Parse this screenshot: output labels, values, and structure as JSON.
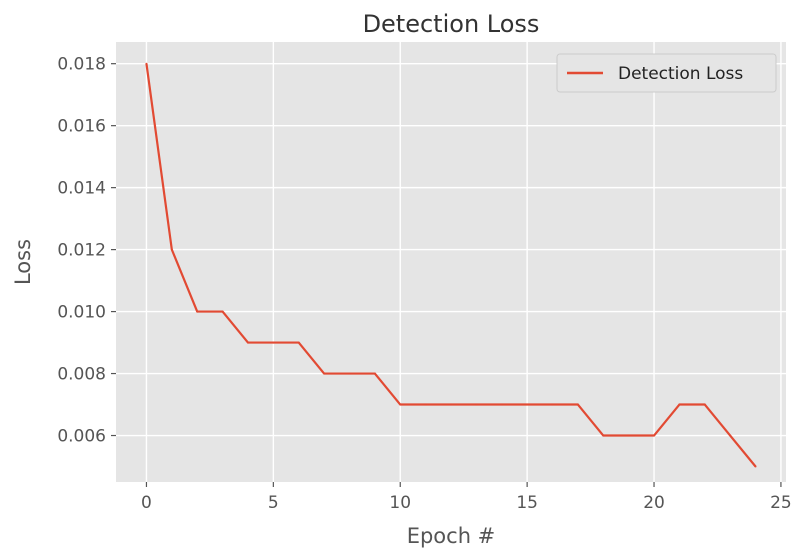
{
  "chart_data": {
    "type": "line",
    "title": "Detection Loss",
    "xlabel": "Epoch #",
    "ylabel": "Loss",
    "xlim": [
      -1.2,
      25.2
    ],
    "ylim": [
      0.0045,
      0.0187
    ],
    "xticks": [
      0,
      5,
      10,
      15,
      20,
      25
    ],
    "xtick_labels": [
      "0",
      "5",
      "10",
      "15",
      "20",
      "25"
    ],
    "yticks": [
      0.006,
      0.008,
      0.01,
      0.012,
      0.014,
      0.016,
      0.018
    ],
    "ytick_labels": [
      "0.006",
      "0.008",
      "0.010",
      "0.012",
      "0.014",
      "0.016",
      "0.018"
    ],
    "grid": true,
    "legend_position": "top-right",
    "x": [
      0,
      1,
      2,
      3,
      4,
      5,
      6,
      7,
      8,
      9,
      10,
      11,
      12,
      13,
      14,
      15,
      16,
      17,
      18,
      19,
      20,
      21,
      22,
      23,
      24
    ],
    "series": [
      {
        "name": "Detection Loss",
        "color": "#E24A33",
        "values": [
          0.018,
          0.012,
          0.01,
          0.01,
          0.009,
          0.009,
          0.009,
          0.008,
          0.008,
          0.008,
          0.007,
          0.007,
          0.007,
          0.007,
          0.007,
          0.007,
          0.007,
          0.007,
          0.006,
          0.006,
          0.006,
          0.007,
          0.007,
          0.006,
          0.005
        ]
      }
    ],
    "colors": {
      "plot_background": "#E5E5E5",
      "grid": "#FFFFFF",
      "text": "#555555"
    }
  }
}
